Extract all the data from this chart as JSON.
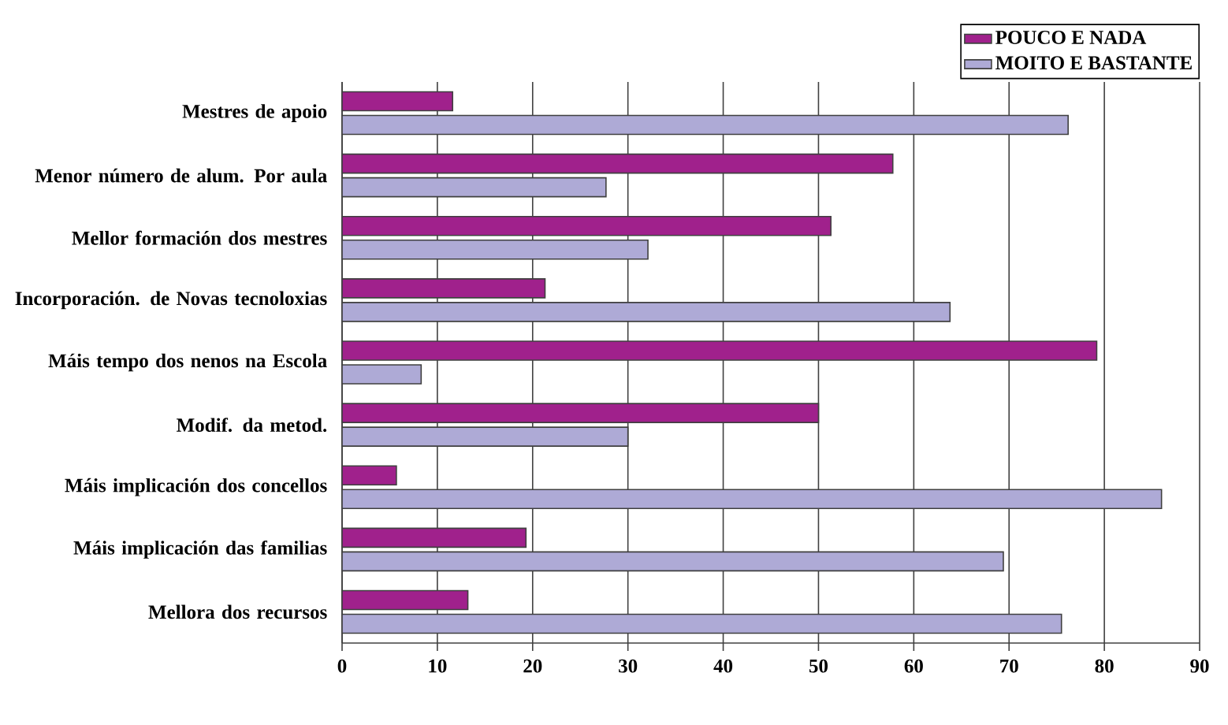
{
  "chart_data": {
    "type": "bar",
    "orientation": "horizontal",
    "categories": [
      "Mestres de apoio",
      "Menor número de alum. Por aula",
      "Mellor formación dos mestres",
      "Incorporación. de Novas tecnoloxias",
      "Máis tempo dos nenos na Escola",
      "Modif. da metod.",
      "Máis implicación dos concellos",
      "Máis implicación das familias",
      "Mellora dos recursos"
    ],
    "series": [
      {
        "name": "POUCO E NADA",
        "color": "#a0218c",
        "values": [
          11.6,
          57.8,
          51.3,
          21.3,
          79.2,
          50.0,
          5.7,
          19.3,
          13.2
        ]
      },
      {
        "name": "MOITO E BASTANTE",
        "color": "#aeaad6",
        "values": [
          76.2,
          27.7,
          32.1,
          63.8,
          8.3,
          30.0,
          86.0,
          69.4,
          75.5
        ]
      }
    ],
    "xlim": [
      0,
      90
    ],
    "xticks": [
      0,
      10,
      20,
      30,
      40,
      50,
      60,
      70,
      80,
      90
    ],
    "grid": "x",
    "legend": "top right"
  }
}
